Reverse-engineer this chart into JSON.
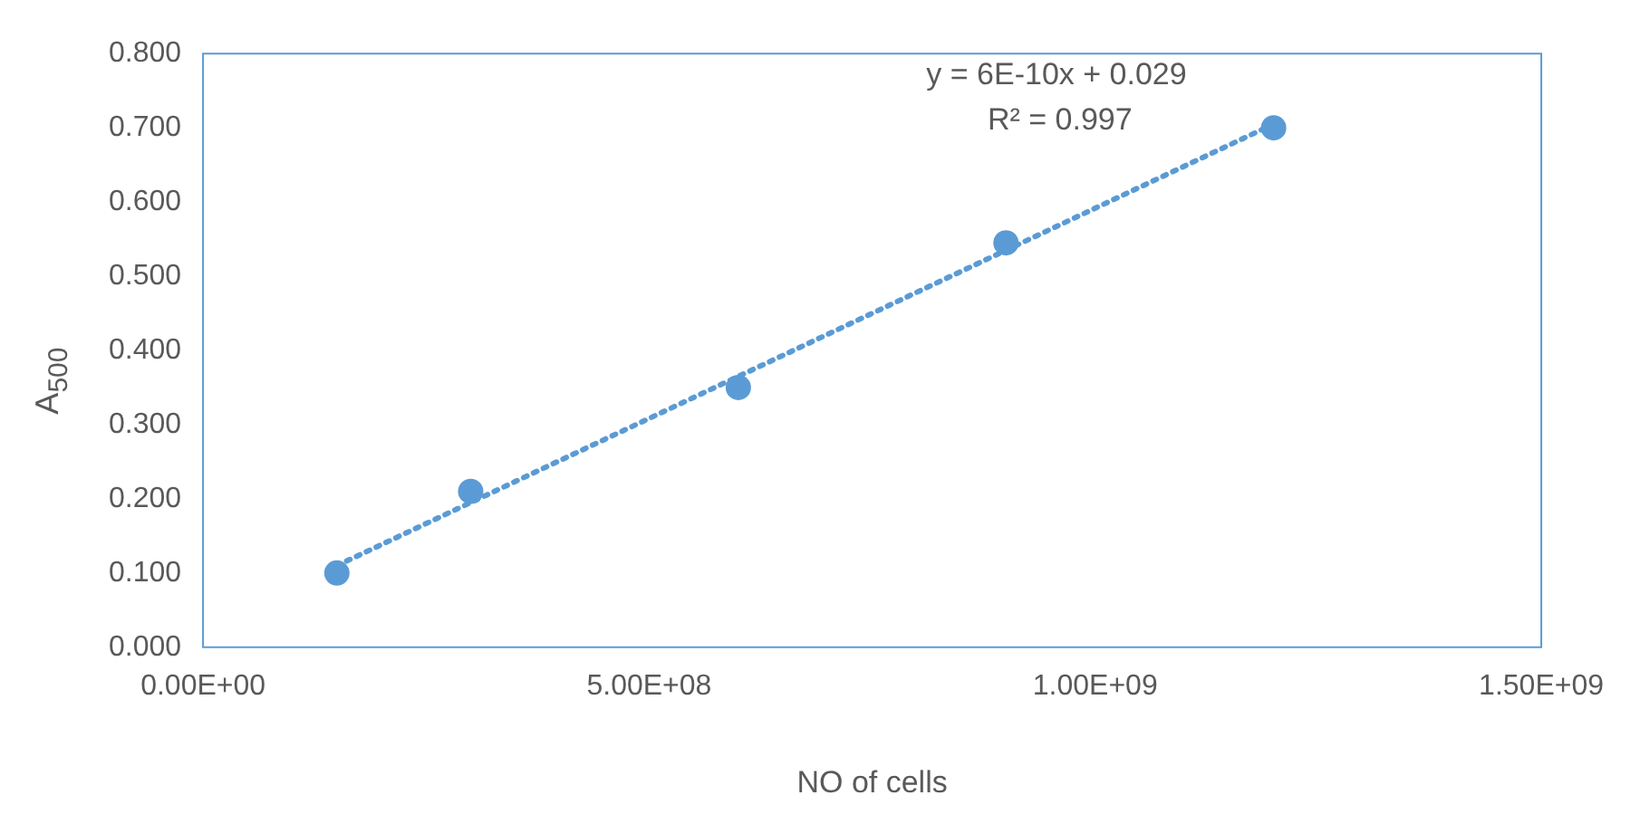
{
  "chart_data": {
    "type": "scatter",
    "xlabel": "NO of cells",
    "ylabel": "A$_{500}$",
    "series": [
      {
        "color": "#5b9bd5",
        "x": [
          150000000,
          300000000,
          600000000,
          900000000,
          1200000000
        ],
        "values": [
          0.1,
          0.21,
          0.35,
          0.545,
          0.7
        ],
        "marker": "circle"
      },
      {
        "type": "line",
        "color": "#5b9bd5",
        "x": [
          150000000,
          1200000000
        ],
        "values": [
          0.11,
          0.705
        ],
        "marker": "none",
        "line_style": "dotted"
      }
    ],
    "xlim": [
      0,
      1500000000
    ],
    "xticks": [
      {
        "value": 0,
        "label": "0.00E+00"
      },
      {
        "value": 500000000,
        "label": "5.00E+08"
      },
      {
        "value": 1000000000,
        "label": "1.00E+09"
      },
      {
        "value": 1500000000,
        "label": "1.50E+09"
      }
    ],
    "ylim": [
      0,
      0.8
    ],
    "yticks": [
      {
        "value": 0,
        "label": "0.000"
      },
      {
        "value": 0.1,
        "label": "0.100"
      },
      {
        "value": 0.2,
        "label": "0.200"
      },
      {
        "value": 0.3,
        "label": "0.300"
      },
      {
        "value": 0.4,
        "label": "0.400"
      },
      {
        "value": 0.5,
        "label": "0.500"
      },
      {
        "value": 0.6,
        "label": "0.600"
      },
      {
        "value": 0.7,
        "label": "0.700"
      },
      {
        "value": 0.8,
        "label": "0.800"
      }
    ],
    "annotations": [
      "y = 6E-10x + 0.029",
      "R² = 0.997"
    ],
    "grid": false,
    "legend": false
  }
}
